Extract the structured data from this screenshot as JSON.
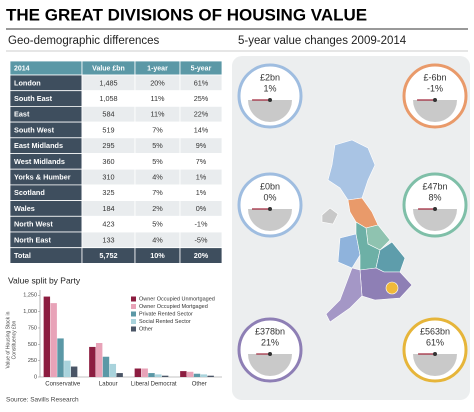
{
  "header": {
    "title": "THE GREAT DIVISIONS OF HOUSING VALUE",
    "subtitle_left": "Geo-demographic differences",
    "subtitle_right": "5-year value changes 2009-2014"
  },
  "table": {
    "columns": [
      "2014",
      "Value £bn",
      "1-year",
      "5-year"
    ],
    "rows": [
      [
        "London",
        "1,485",
        "20%",
        "61%"
      ],
      [
        "South East",
        "1,058",
        "11%",
        "25%"
      ],
      [
        "East",
        "584",
        "11%",
        "22%"
      ],
      [
        "South West",
        "519",
        "7%",
        "14%"
      ],
      [
        "East Midlands",
        "295",
        "5%",
        "9%"
      ],
      [
        "West Midlands",
        "360",
        "5%",
        "7%"
      ],
      [
        "Yorks & Humber",
        "310",
        "4%",
        "1%"
      ],
      [
        "Scotland",
        "325",
        "7%",
        "1%"
      ],
      [
        "Wales",
        "184",
        "2%",
        "0%"
      ],
      [
        "North West",
        "423",
        "5%",
        "-1%"
      ],
      [
        "North East",
        "133",
        "4%",
        "-5%"
      ],
      [
        "Total",
        "5,752",
        "10%",
        "20%"
      ]
    ]
  },
  "chart_data": {
    "type": "bar",
    "title": "Value split by Party",
    "y_label": [
      "Value of Housing Stock in",
      "Constituency £bn"
    ],
    "categories": [
      "Conservative",
      "Labour",
      "Liberal Democrat",
      "Other"
    ],
    "series": [
      {
        "name": "Owner Occupied Unmortgaged",
        "color": "#8c1d40",
        "values": [
          1230,
          460,
          130,
          90
        ]
      },
      {
        "name": "Owner Occupied Mortgaged",
        "color": "#e8a3b8",
        "values": [
          1130,
          520,
          130,
          80
        ]
      },
      {
        "name": "Private Rented Sector",
        "color": "#5b98a6",
        "values": [
          590,
          310,
          60,
          50
        ]
      },
      {
        "name": "Social Rented Sector",
        "color": "#a9d3dc",
        "values": [
          250,
          200,
          40,
          40
        ]
      },
      {
        "name": "Other",
        "color": "#4a5566",
        "values": [
          160,
          60,
          20,
          20
        ]
      }
    ],
    "ylim": [
      0,
      1300
    ],
    "yticks": [
      0,
      250,
      500,
      750,
      {
        "value": 1000,
        "label": "1,000"
      },
      {
        "value": 1250,
        "label": "1,250"
      }
    ]
  },
  "gauges": [
    {
      "value": "£2bn",
      "change": "1%",
      "color": "#9fbde0"
    },
    {
      "value": "£-6bn",
      "change": "-1%",
      "color": "#e99a6a"
    },
    {
      "value": "£0bn",
      "change": "0%",
      "color": "#9fbde0"
    },
    {
      "value": "£47bn",
      "change": "8%",
      "color": "#7fbfa8"
    },
    {
      "value": "£378bn",
      "change": "21%",
      "color": "#8e7fb5"
    },
    {
      "value": "£563bn",
      "change": "61%",
      "color": "#e6b53a"
    }
  ],
  "source": "Source: Savills Research"
}
